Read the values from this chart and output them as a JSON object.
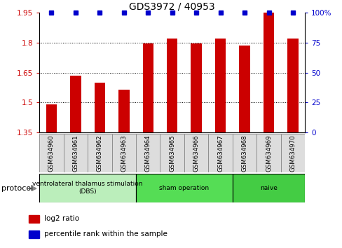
{
  "title": "GDS3972 / 40953",
  "samples": [
    "GSM634960",
    "GSM634961",
    "GSM634962",
    "GSM634963",
    "GSM634964",
    "GSM634965",
    "GSM634966",
    "GSM634967",
    "GSM634968",
    "GSM634969",
    "GSM634970"
  ],
  "log2_ratio": [
    1.49,
    1.635,
    1.6,
    1.565,
    1.795,
    1.82,
    1.795,
    1.82,
    1.785,
    1.95,
    1.82
  ],
  "percentile_rank": [
    100,
    100,
    100,
    100,
    100,
    100,
    100,
    100,
    100,
    100,
    100
  ],
  "bar_color": "#cc0000",
  "dot_color": "#0000cc",
  "ymin": 1.35,
  "ymax": 1.95,
  "ylim_right": [
    0,
    100
  ],
  "yticks_left": [
    1.35,
    1.5,
    1.65,
    1.8,
    1.95
  ],
  "yticks_right": [
    0,
    25,
    50,
    75,
    100
  ],
  "groups": [
    {
      "label": "ventrolateral thalamus stimulation\n(DBS)",
      "start": 0,
      "end": 3,
      "color": "#bbeebb"
    },
    {
      "label": "sham operation",
      "start": 4,
      "end": 7,
      "color": "#55dd55"
    },
    {
      "label": "naive",
      "start": 8,
      "end": 10,
      "color": "#44cc44"
    }
  ],
  "legend_items": [
    {
      "color": "#cc0000",
      "label": "log2 ratio"
    },
    {
      "color": "#0000cc",
      "label": "percentile rank within the sample"
    }
  ],
  "protocol_label": "protocol"
}
